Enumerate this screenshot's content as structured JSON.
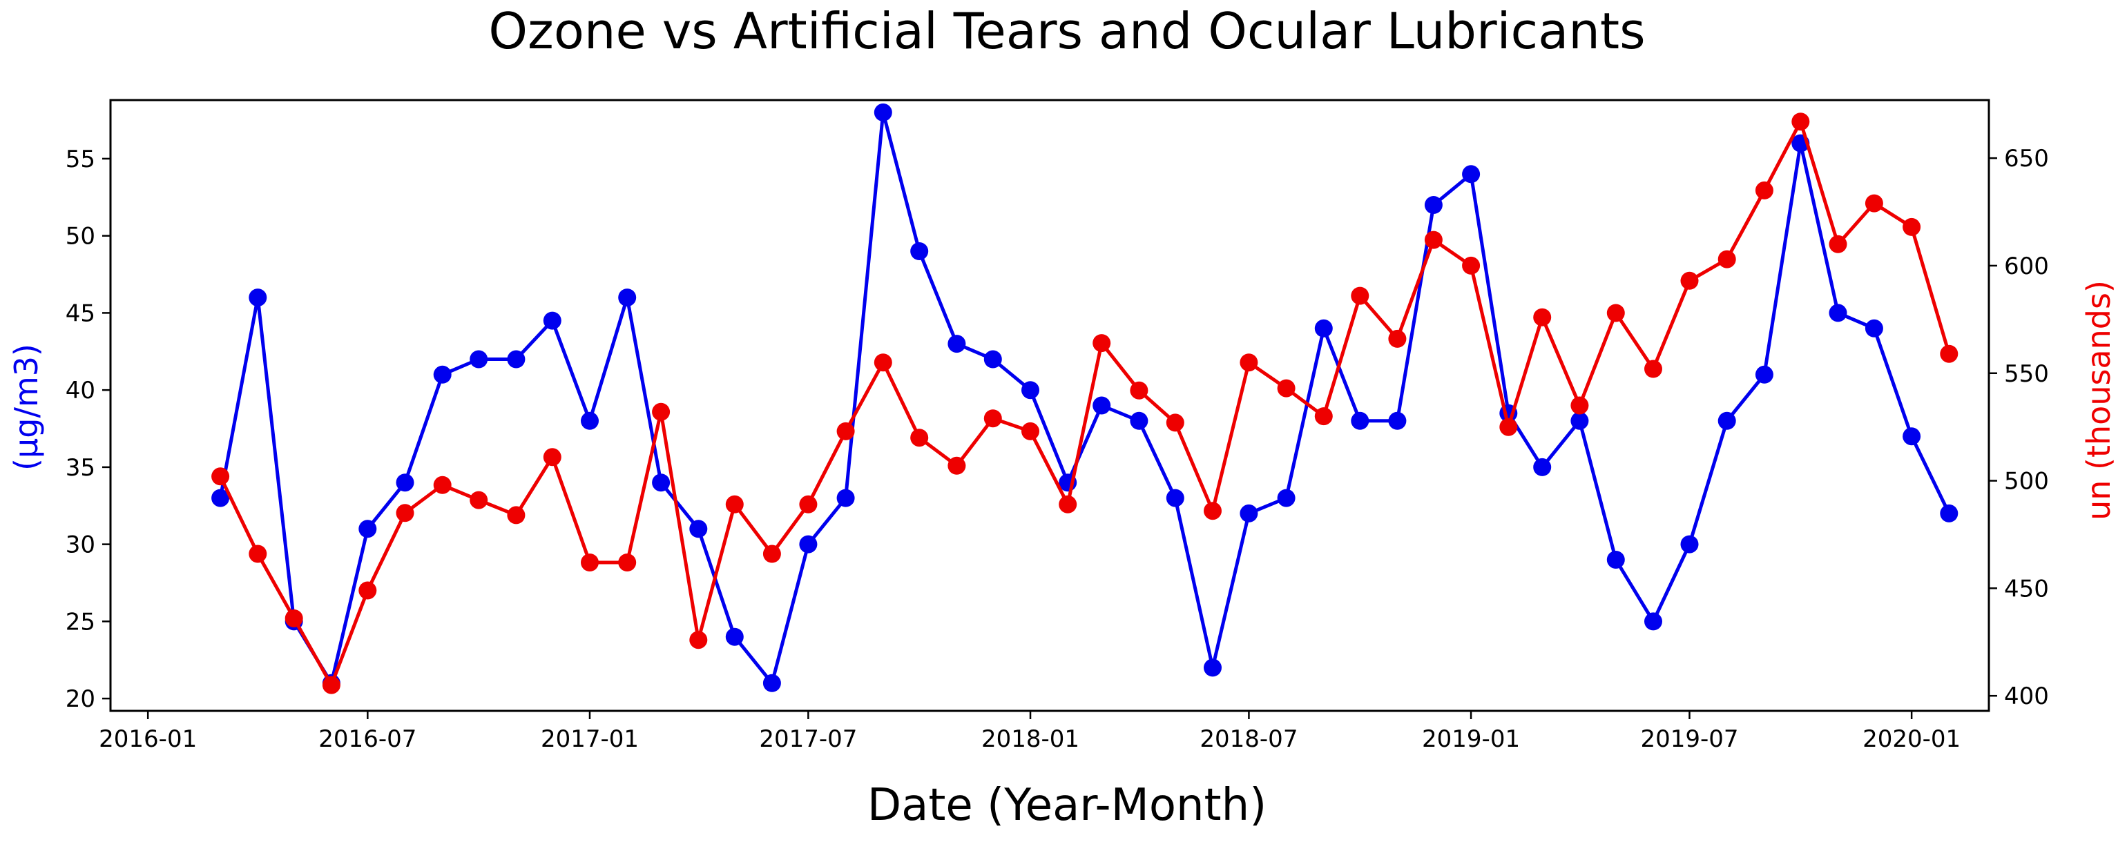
{
  "chart_data": {
    "type": "line",
    "title": "Ozone vs Artificial Tears and Ocular Lubricants",
    "xlabel": "Date (Year-Month)",
    "ylabel_left": "(µg/m3)",
    "ylabel_right": "un (thousands)",
    "x_ticks": [
      "2016-01",
      "2016-07",
      "2017-01",
      "2017-07",
      "2018-01",
      "2018-07",
      "2019-01",
      "2019-07",
      "2020-01"
    ],
    "x_tick_dates": [
      "2016-01-01",
      "2016-07-01",
      "2017-01-01",
      "2017-07-01",
      "2018-01-01",
      "2018-07-01",
      "2019-01-01",
      "2019-07-01",
      "2020-01-01"
    ],
    "y_left_ticks": [
      20,
      25,
      30,
      35,
      40,
      45,
      50,
      55
    ],
    "y_right_ticks": [
      400,
      450,
      500,
      550,
      600,
      650
    ],
    "xlim": [
      "2015-12-01",
      "2020-03-05"
    ],
    "y_left_lim": [
      19.2,
      58.8
    ],
    "y_right_lim": [
      393,
      677
    ],
    "grid": false,
    "x": [
      "2016-03-01",
      "2016-04-01",
      "2016-05-01",
      "2016-06-01",
      "2016-07-01",
      "2016-08-01",
      "2016-09-01",
      "2016-10-01",
      "2016-11-01",
      "2016-12-01",
      "2017-01-01",
      "2017-02-01",
      "2017-03-01",
      "2017-04-01",
      "2017-05-01",
      "2017-06-01",
      "2017-07-01",
      "2017-08-01",
      "2017-09-01",
      "2017-10-01",
      "2017-11-01",
      "2017-12-01",
      "2018-01-01",
      "2018-02-01",
      "2018-03-01",
      "2018-04-01",
      "2018-05-01",
      "2018-06-01",
      "2018-07-01",
      "2018-08-01",
      "2018-09-01",
      "2018-10-01",
      "2018-11-01",
      "2018-12-01",
      "2019-01-01",
      "2019-02-01",
      "2019-03-01",
      "2019-04-01",
      "2019-05-01",
      "2019-06-01",
      "2019-07-01",
      "2019-08-01",
      "2019-09-01",
      "2019-10-01",
      "2019-11-01",
      "2019-12-01",
      "2020-01-01",
      "2020-02-01"
    ],
    "series": [
      {
        "axis": "left",
        "color": "#0000ee",
        "values": [
          33,
          46,
          25,
          21,
          31,
          34,
          41,
          42,
          42,
          44.5,
          38,
          46,
          34,
          31,
          24,
          21,
          30,
          33,
          58,
          49,
          43,
          42,
          40,
          34,
          39,
          38,
          33,
          22,
          32,
          33,
          44,
          38,
          38,
          52,
          54,
          38.5,
          35,
          38,
          29,
          25,
          30,
          38,
          41,
          56,
          45,
          44,
          37,
          32
        ]
      },
      {
        "axis": "right",
        "color": "#ee0000",
        "values": [
          502,
          466,
          436,
          405,
          449,
          485,
          498,
          491,
          484,
          511,
          462,
          462,
          532,
          426,
          489,
          466,
          489,
          523,
          555,
          520,
          507,
          529,
          523,
          489,
          564,
          542,
          527,
          486,
          555,
          543,
          530,
          586,
          566,
          612,
          600,
          525,
          576,
          535,
          578,
          552,
          593,
          603,
          635,
          667,
          610,
          629,
          618,
          559
        ]
      }
    ]
  }
}
